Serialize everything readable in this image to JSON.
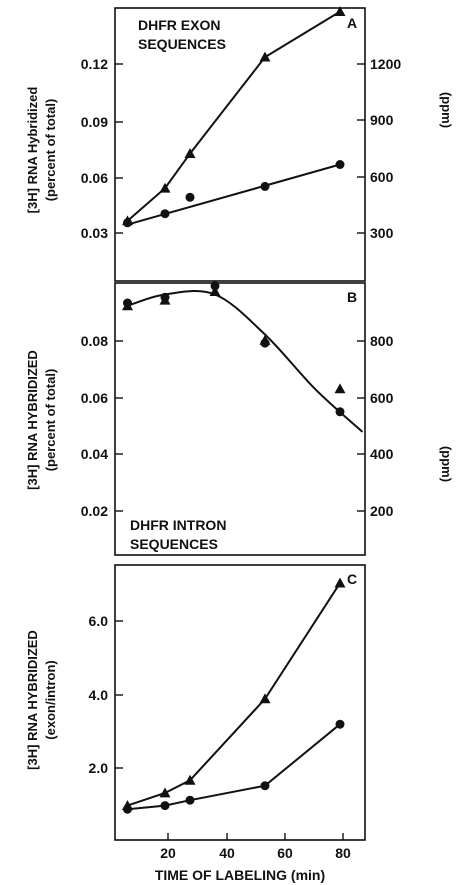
{
  "chart_data": [
    {
      "panel": "A",
      "type": "line",
      "title_lines": [
        "DHFR EXON",
        "SEQUENCES"
      ],
      "ylabel_lines": [
        "[3H] RNA Hybridized",
        "(percent of total)"
      ],
      "y2label": "(ppm)",
      "ylim": [
        0.0,
        0.15
      ],
      "yticks": [
        "0.03",
        "0.06",
        "0.09",
        "0.12"
      ],
      "y2ticks": [
        "300",
        "600",
        "900",
        "1200"
      ],
      "xlim": [
        0,
        100
      ],
      "series": [
        {
          "marker": "triangle",
          "x": [
            5,
            20,
            30,
            60,
            90
          ],
          "y": [
            0.033,
            0.051,
            0.07,
            0.123,
            0.148
          ]
        },
        {
          "marker": "circle",
          "x": [
            5,
            20,
            30,
            60,
            90
          ],
          "y": [
            0.032,
            0.037,
            0.046,
            0.052,
            0.064
          ],
          "line": [
            [
              5,
              0.031
            ],
            [
              90,
              0.064
            ]
          ]
        }
      ]
    },
    {
      "panel": "B",
      "type": "line",
      "title_lines": [
        "DHFR INTRON",
        "SEQUENCES"
      ],
      "ylabel_lines": [
        "[3H] RNA HYBRIDIZED",
        "(percent of total)"
      ],
      "y2label": "(ppm)",
      "ylim": [
        0.0,
        0.095
      ],
      "yticks": [
        "0.02",
        "0.04",
        "0.06",
        "0.08"
      ],
      "y2ticks": [
        "200",
        "400",
        "600",
        "800"
      ],
      "xlim": [
        0,
        100
      ],
      "series": [
        {
          "marker": "triangle",
          "x": [
            5,
            20,
            40,
            60,
            90
          ],
          "y": [
            0.087,
            0.089,
            0.092,
            0.075,
            0.058
          ]
        },
        {
          "marker": "circle",
          "x": [
            5,
            20,
            40,
            60,
            90
          ],
          "y": [
            0.088,
            0.09,
            0.094,
            0.074,
            0.05
          ],
          "curve": [
            [
              5,
              0.087
            ],
            [
              20,
              0.091
            ],
            [
              40,
              0.091
            ],
            [
              60,
              0.077
            ],
            [
              80,
              0.058
            ],
            [
              99,
              0.043
            ]
          ]
        }
      ]
    },
    {
      "panel": "C",
      "type": "line",
      "ylabel_lines": [
        "[3H] RNA HYBRIDIZED",
        "(exon/intron)"
      ],
      "ylim": [
        0.0,
        7.6
      ],
      "yticks": [
        "2.0",
        "4.0",
        "6.0"
      ],
      "xlabel": "TIME OF LABELING (min)",
      "xticks": [
        "20",
        "40",
        "60",
        "80"
      ],
      "xlim": [
        0,
        100
      ],
      "series": [
        {
          "marker": "triangle",
          "x": [
            5,
            20,
            30,
            60,
            90
          ],
          "y": [
            0.95,
            1.3,
            1.65,
            3.9,
            7.1
          ]
        },
        {
          "marker": "circle",
          "x": [
            5,
            20,
            30,
            60,
            90
          ],
          "y": [
            0.85,
            0.95,
            1.1,
            1.5,
            3.2
          ]
        }
      ]
    }
  ]
}
